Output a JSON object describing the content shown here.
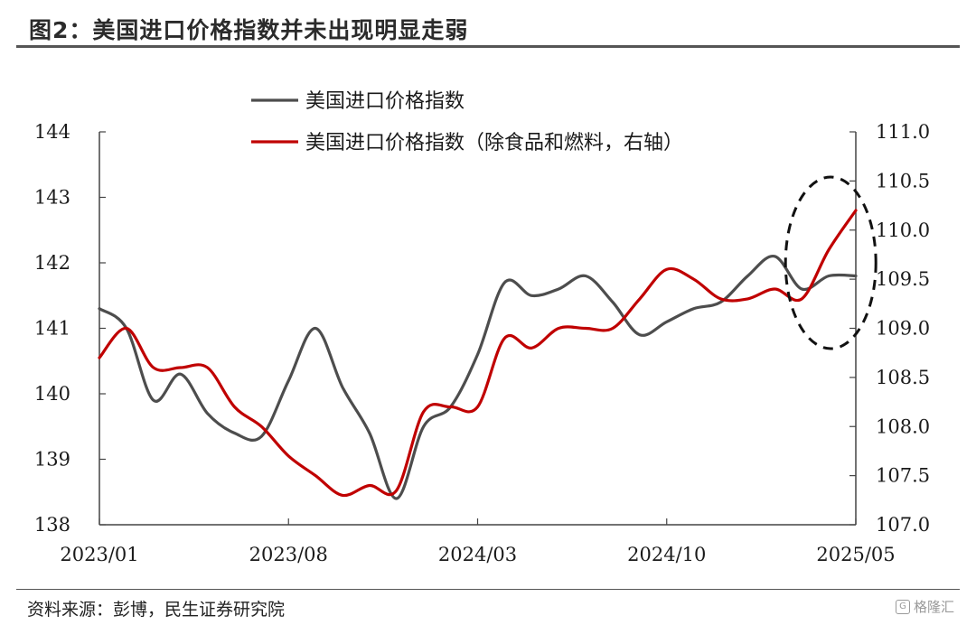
{
  "page": {
    "title": "图2：美国进口价格指数并未出现明显走弱",
    "source": "资料来源：彭博，民生证券研究院",
    "watermark": "格隆汇"
  },
  "chart_data": {
    "type": "line",
    "title": "图2：美国进口价格指数并未出现明显走弱",
    "xlabel": "",
    "ylabel": "",
    "x_tick_labels": [
      "2023/01",
      "2023/08",
      "2024/03",
      "2024/10",
      "2025/05"
    ],
    "x": [
      "2023/01",
      "2023/02",
      "2023/03",
      "2023/04",
      "2023/05",
      "2023/06",
      "2023/07",
      "2023/08",
      "2023/09",
      "2023/10",
      "2023/11",
      "2023/12",
      "2024/01",
      "2024/02",
      "2024/03",
      "2024/04",
      "2024/05",
      "2024/06",
      "2024/07",
      "2024/08",
      "2024/09",
      "2024/10",
      "2024/11",
      "2024/12",
      "2025/01",
      "2025/02",
      "2025/03",
      "2025/04",
      "2025/05"
    ],
    "y_left": {
      "lim": [
        138,
        144
      ],
      "ticks": [
        "138",
        "139",
        "140",
        "141",
        "142",
        "143",
        "144"
      ]
    },
    "y_right": {
      "lim": [
        107.0,
        111.0
      ],
      "ticks": [
        "107.0",
        "107.5",
        "108.0",
        "108.5",
        "109.0",
        "109.5",
        "110.0",
        "110.5",
        "111.0"
      ]
    },
    "legend_position": "top",
    "series": [
      {
        "name": "美国进口价格指数",
        "axis": "left",
        "color": "#4d4d4d",
        "values": [
          141.3,
          141.0,
          139.9,
          140.3,
          139.7,
          139.4,
          139.35,
          140.2,
          141.0,
          140.1,
          139.4,
          138.4,
          139.5,
          139.8,
          140.6,
          141.7,
          141.5,
          141.6,
          141.8,
          141.4,
          140.9,
          141.1,
          141.3,
          141.4,
          141.8,
          142.1,
          141.6,
          141.8,
          141.8
        ]
      },
      {
        "name": "美国进口价格指数（除食品和燃料，右轴）",
        "axis": "right",
        "color": "#c00000",
        "values": [
          108.7,
          109.0,
          108.6,
          108.6,
          108.6,
          108.2,
          108.0,
          107.7,
          107.5,
          107.3,
          107.4,
          107.35,
          108.15,
          108.2,
          108.2,
          108.9,
          108.8,
          109.0,
          109.0,
          109.0,
          109.3,
          109.6,
          109.5,
          109.3,
          109.3,
          109.4,
          109.3,
          109.8,
          110.2
        ]
      }
    ],
    "annotations": [
      {
        "type": "dashed-ellipse",
        "x_range": [
          "2025/01",
          "2025/05"
        ]
      }
    ]
  }
}
